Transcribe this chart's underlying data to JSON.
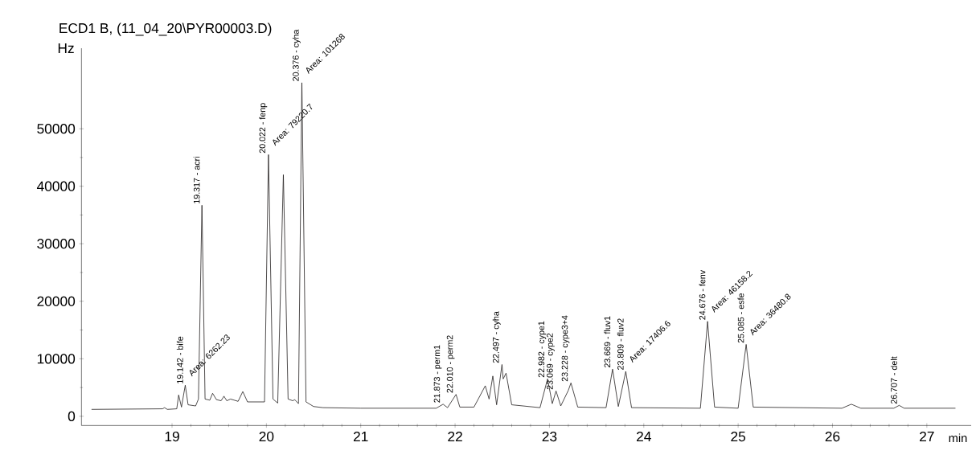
{
  "chart_data": {
    "type": "line",
    "title": "ECD1 B,  (11_04_20\\PYR00003.D)",
    "xlabel": "min",
    "ylabel": "Hz",
    "series": [
      {
        "color": "#231f20",
        "x": [
          18.15,
          18.9,
          18.92,
          18.95,
          19.05,
          19.07,
          19.1,
          19.14,
          19.17,
          19.25,
          19.28,
          19.317,
          19.35,
          19.4,
          19.43,
          19.47,
          19.52,
          19.55,
          19.58,
          19.62,
          19.7,
          19.75,
          19.8,
          19.98,
          20.022,
          20.07,
          20.12,
          20.18,
          20.23,
          20.28,
          20.3,
          20.34,
          20.376,
          20.42,
          20.5,
          20.6,
          21.0,
          21.8,
          21.873,
          21.92,
          22.01,
          22.05,
          22.2,
          22.32,
          22.36,
          22.4,
          22.44,
          22.497,
          22.51,
          22.54,
          22.6,
          22.9,
          22.98,
          23.03,
          23.07,
          23.12,
          23.2,
          23.228,
          23.3,
          23.6,
          23.669,
          23.73,
          23.809,
          23.87,
          24.6,
          24.676,
          24.75,
          25.0,
          25.085,
          25.16,
          26.1,
          26.2,
          26.3,
          26.65,
          26.707,
          26.76,
          27.3
        ],
        "values": [
          1200,
          1300,
          1500,
          1200,
          1300,
          3700,
          1600,
          5400,
          2000,
          1800,
          3000,
          36700,
          3000,
          2800,
          4000,
          2900,
          2700,
          3500,
          2700,
          3000,
          2600,
          4300,
          2500,
          2500,
          45500,
          3000,
          2300,
          42000,
          3000,
          2700,
          2900,
          2200,
          58000,
          2500,
          1700,
          1500,
          1400,
          1400,
          2100,
          1500,
          3800,
          1600,
          1600,
          5300,
          3000,
          7000,
          2000,
          9000,
          6500,
          7500,
          2000,
          1500,
          6500,
          2200,
          4400,
          1800,
          4500,
          5800,
          1600,
          1500,
          8200,
          1700,
          7800,
          1500,
          1400,
          16500,
          1600,
          1400,
          12500,
          1600,
          1400,
          2100,
          1400,
          1400,
          1900,
          1400,
          1400
        ]
      }
    ],
    "xlim": [
      18.04,
      27.47
    ],
    "ylim": [
      -1600,
      64000
    ],
    "xticks": [
      19,
      20,
      21,
      22,
      23,
      24,
      25,
      26,
      27
    ],
    "yticks": [
      0,
      10000,
      20000,
      30000,
      40000,
      50000
    ],
    "grid": false,
    "annotations": [
      {
        "text": "19.142 -  bife",
        "x": 19.14,
        "y": 5400
      },
      {
        "text": "19.317 -  acri",
        "x": 19.317,
        "y": 36700
      },
      {
        "text": "20.022 -  fenp",
        "x": 20.022,
        "y": 45500
      },
      {
        "text": "20.376 -  cyha",
        "x": 20.376,
        "y": 58000
      },
      {
        "text": "21.873 -  perm1",
        "x": 21.873,
        "y": 2100
      },
      {
        "text": "22.010 -  perm2",
        "x": 22.01,
        "y": 3800
      },
      {
        "text": "22.497 -  cyha",
        "x": 22.497,
        "y": 9000
      },
      {
        "text": "22.982 -  cype1",
        "x": 22.98,
        "y": 6500
      },
      {
        "text": "23.069 -  cype2",
        "x": 23.07,
        "y": 4400
      },
      {
        "text": "23.228 -  cype3+4",
        "x": 23.228,
        "y": 5800
      },
      {
        "text": "23.669 -  fluv1",
        "x": 23.669,
        "y": 8200
      },
      {
        "text": "23.809 -  fluv2",
        "x": 23.809,
        "y": 7800
      },
      {
        "text": "24.676 -  fenv",
        "x": 24.676,
        "y": 16500
      },
      {
        "text": "25.085 -  esfe",
        "x": 25.085,
        "y": 12500
      },
      {
        "text": "26.707 -  delt",
        "x": 26.707,
        "y": 1900
      },
      {
        "text": "Area: 6262.23",
        "x": 19.14,
        "y": 5400
      },
      {
        "text": "Area: 79220.7",
        "x": 20.022,
        "y": 45500
      },
      {
        "text": "Area: 101268",
        "x": 20.376,
        "y": 58000
      },
      {
        "text": "Area: 17406.6",
        "x": 23.809,
        "y": 7800
      },
      {
        "text": "Area: 46158.2",
        "x": 24.676,
        "y": 16500
      },
      {
        "text": "Area: 36480.8",
        "x": 25.085,
        "y": 12500
      }
    ]
  }
}
